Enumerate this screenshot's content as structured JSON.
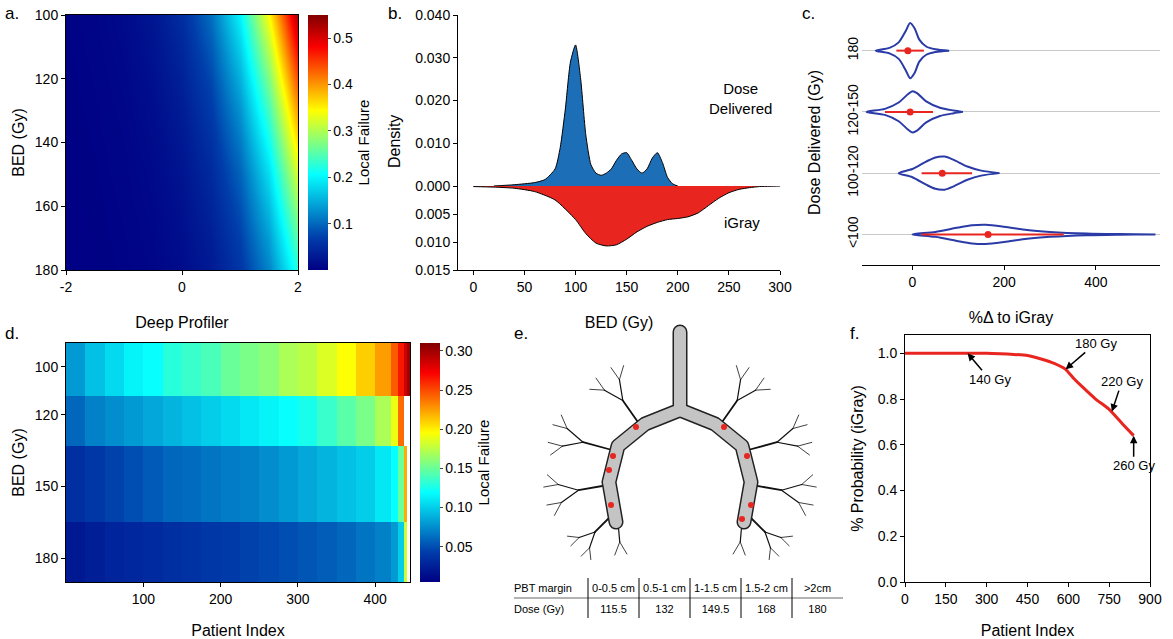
{
  "chart_data": [
    {
      "type": "heatmap",
      "title": "a.",
      "x_label": "Deep Profiler",
      "y_label": "BED (Gy)",
      "x": [
        -2,
        -1.5,
        -1,
        -0.5,
        0,
        0.5,
        1,
        1.5,
        2
      ],
      "y": [
        100,
        110,
        120,
        130,
        140,
        150,
        160,
        170,
        180
      ],
      "z": [
        [
          0.0028,
          0.0058,
          0.0123,
          0.0256,
          0.0527,
          0.105,
          0.199,
          0.345,
          0.527
        ],
        [
          0.0023,
          0.0049,
          0.0103,
          0.0217,
          0.0448,
          0.09,
          0.174,
          0.308,
          0.485
        ],
        [
          0.002,
          0.0042,
          0.0088,
          0.0183,
          0.0381,
          0.077,
          0.151,
          0.273,
          0.443
        ],
        [
          0.0017,
          0.0035,
          0.0074,
          0.0155,
          0.0323,
          0.066,
          0.13,
          0.241,
          0.401
        ],
        [
          0.0014,
          0.003,
          0.0062,
          0.0131,
          0.0274,
          0.056,
          0.112,
          0.211,
          0.361
        ],
        [
          0.0012,
          0.0025,
          0.0053,
          0.0111,
          0.0232,
          0.048,
          0.096,
          0.184,
          0.323
        ],
        [
          0.001,
          0.0021,
          0.0045,
          0.0095,
          0.0198,
          0.041,
          0.083,
          0.161,
          0.289
        ],
        [
          0.0009,
          0.0018,
          0.0038,
          0.008,
          0.0168,
          0.035,
          0.071,
          0.139,
          0.255
        ],
        [
          0.0007,
          0.0015,
          0.0032,
          0.0068,
          0.0142,
          0.03,
          0.061,
          0.12,
          0.224
        ]
      ],
      "xlim": [
        -2,
        2
      ],
      "xticks": [
        -2,
        0,
        2
      ],
      "ylim": [
        180,
        100
      ],
      "yticks": [
        100,
        120,
        140,
        160,
        180
      ],
      "color": "Jet",
      "colorbar": {
        "title": "Local Failure",
        "range": [
          0,
          0.55
        ],
        "ticks": [
          0.1,
          0.2,
          0.3,
          0.4,
          0.5
        ]
      }
    },
    {
      "type": "density",
      "title": "b.",
      "x_label": "BED (Gy)",
      "y_label": "Density",
      "xlim": [
        -15,
        300
      ],
      "xticks": [
        0,
        50,
        100,
        150,
        200,
        250,
        300
      ],
      "ylim": [
        0,
        0.04
      ],
      "yticks": [
        {
          "value": 0,
          "label": "0.000"
        },
        {
          "value": 0.01,
          "label": "0.010"
        },
        {
          "value": 0.02,
          "label": "0.020"
        },
        {
          "value": 0.03,
          "label": "0.030"
        },
        {
          "value": 0.04,
          "label": "0.040"
        }
      ],
      "y2lim": [
        0.015,
        0
      ],
      "y2ticks": [
        0.005,
        {
          "value": 0.01,
          "label": "0.010"
        },
        0.015
      ],
      "series": [
        {
          "name": "Dose Delivered",
          "color": "#1c6eb7",
          "x": [
            20,
            40,
            60,
            70,
            80,
            85,
            90,
            95,
            100,
            105,
            110,
            115,
            120,
            125,
            130,
            135,
            140,
            145,
            150,
            155,
            160,
            165,
            170,
            175,
            180,
            185,
            190,
            195,
            200
          ],
          "values": [
            0,
            0.0003,
            0.0008,
            0.0015,
            0.004,
            0.009,
            0.018,
            0.029,
            0.033,
            0.025,
            0.012,
            0.005,
            0.003,
            0.0025,
            0.003,
            0.004,
            0.006,
            0.0075,
            0.0078,
            0.006,
            0.004,
            0.003,
            0.004,
            0.0065,
            0.0078,
            0.0055,
            0.002,
            0.0005,
            0
          ]
        },
        {
          "name": "iGray",
          "color": "#e8251f",
          "axis": "y2",
          "x": [
            0,
            20,
            40,
            60,
            80,
            100,
            110,
            120,
            130,
            140,
            150,
            160,
            170,
            180,
            190,
            200,
            210,
            220,
            230,
            240,
            250,
            260,
            270,
            280,
            290,
            300
          ],
          "values": [
            0.0001,
            0.0002,
            0.0004,
            0.001,
            0.0025,
            0.006,
            0.0085,
            0.0102,
            0.0107,
            0.0105,
            0.0095,
            0.0082,
            0.0072,
            0.0065,
            0.006,
            0.0058,
            0.0055,
            0.0048,
            0.0035,
            0.0022,
            0.0012,
            0.0006,
            0.0003,
            0.0001,
            5e-05,
            0
          ]
        }
      ]
    },
    {
      "type": "violin",
      "title": "c.",
      "orientation": "horizontal",
      "x_label": "%Δ to iGray",
      "y_label": "Dose Delivered (Gy)",
      "categories": [
        "<100",
        "100-120",
        "120-150",
        "180"
      ],
      "xlim": [
        -110,
        540
      ],
      "xticks": [
        0,
        200,
        400
      ],
      "grid": true,
      "color": "#2a3aa6",
      "violins": [
        {
          "x": [
            0,
            50,
            100,
            130,
            160,
            200,
            250,
            300,
            380,
            450,
            530
          ],
          "density": [
            0,
            0.09,
            0.25,
            0.33,
            0.35,
            0.28,
            0.16,
            0.09,
            0.03,
            0.01,
            0
          ],
          "median": 165,
          "whiskers": [
            20,
            330
          ]
        },
        {
          "x": [
            -30,
            0,
            30,
            50,
            70,
            90,
            120,
            150,
            190
          ],
          "density": [
            0,
            0.15,
            0.42,
            0.57,
            0.6,
            0.48,
            0.24,
            0.09,
            0
          ],
          "median": 65,
          "whiskers": [
            20,
            130
          ]
        },
        {
          "x": [
            -100,
            -60,
            -30,
            -10,
            0,
            10,
            30,
            60,
            90,
            110
          ],
          "density": [
            0,
            0.11,
            0.34,
            0.64,
            0.75,
            0.68,
            0.38,
            0.15,
            0.05,
            0
          ],
          "median": -5,
          "whiskers": [
            -60,
            45
          ]
        },
        {
          "x": [
            -80,
            -50,
            -30,
            -15,
            -5,
            5,
            15,
            30,
            50,
            80
          ],
          "density": [
            0,
            0.1,
            0.3,
            0.7,
            1,
            0.8,
            0.4,
            0.15,
            0.05,
            0
          ],
          "median": -10,
          "whiskers": [
            -35,
            25
          ]
        }
      ]
    },
    {
      "type": "heatmap",
      "title": "d.",
      "x_label": "Patient Index",
      "y_label": "BED (Gy)",
      "x_edges": [
        0,
        25,
        50,
        75,
        100,
        125,
        150,
        175,
        200,
        225,
        250,
        275,
        300,
        325,
        350,
        375,
        400,
        420,
        430,
        437,
        441,
        445
      ],
      "y_edges": [
        90,
        112,
        133,
        165,
        190
      ],
      "z": [
        [
          0.08,
          0.095,
          0.105,
          0.115,
          0.12,
          0.13,
          0.135,
          0.14,
          0.15,
          0.155,
          0.16,
          0.17,
          0.175,
          0.185,
          0.195,
          0.21,
          0.225,
          0.245,
          0.265,
          0.285,
          0.3
        ],
        [
          0.06,
          0.07,
          0.075,
          0.08,
          0.085,
          0.09,
          0.095,
          0.1,
          0.105,
          0.11,
          0.115,
          0.12,
          0.125,
          0.135,
          0.145,
          0.155,
          0.17,
          0.19,
          0.24,
          null,
          null
        ],
        [
          0.035,
          0.04,
          0.045,
          0.05,
          0.055,
          0.06,
          0.062,
          0.065,
          0.068,
          0.07,
          0.075,
          0.08,
          0.085,
          0.09,
          0.095,
          0.1,
          0.11,
          0.12,
          0.15,
          0.22,
          null
        ],
        [
          0.02,
          0.025,
          0.028,
          0.03,
          0.032,
          0.035,
          0.037,
          0.04,
          0.042,
          0.045,
          0.048,
          0.05,
          0.053,
          0.056,
          0.06,
          0.065,
          0.07,
          0.08,
          0.1,
          0.18,
          null
        ]
      ],
      "xlim": [
        0,
        445
      ],
      "xticks": [
        100,
        200,
        300,
        400
      ],
      "ylim": [
        190,
        90
      ],
      "yticks": [
        100,
        120,
        150,
        180
      ],
      "color": "Jet",
      "colorbar": {
        "title": "Local Failure",
        "range": [
          0.005,
          0.31
        ],
        "ticks": [
          0.05,
          {
            "value": 0.1,
            "label": "0.10"
          },
          0.15,
          {
            "value": 0.2,
            "label": "0.20"
          },
          0.25,
          {
            "value": 0.3,
            "label": "0.30"
          }
        ]
      }
    },
    {
      "type": "line",
      "title": "f.",
      "x_label": "Patient Index",
      "y_label": "% Probability (iGray)",
      "x": [
        0,
        100,
        200,
        300,
        350,
        400,
        450,
        500,
        550,
        590,
        620,
        650,
        700,
        750,
        800,
        840
      ],
      "values": [
        1,
        1,
        1,
        1,
        0.998,
        0.995,
        0.99,
        0.975,
        0.955,
        0.93,
        0.89,
        0.855,
        0.8,
        0.755,
        0.69,
        0.64
      ],
      "color": "#e8251f",
      "xlim": [
        0,
        900
      ],
      "xticks": [
        0,
        150,
        300,
        450,
        600,
        750,
        900
      ],
      "ylim": [
        0,
        1.08
      ],
      "yticks": [
        {
          "value": 0,
          "label": "0.0"
        },
        0.2,
        0.4,
        0.6,
        0.8,
        {
          "value": 1,
          "label": "1.0"
        }
      ],
      "annotations": [
        {
          "text": "140 Gy",
          "x": 230,
          "y": 1.0
        },
        {
          "text": "180 Gy",
          "x": 590,
          "y": 0.93
        },
        {
          "text": "220 Gy",
          "x": 760,
          "y": 0.745
        },
        {
          "text": "260 Gy",
          "x": 840,
          "y": 0.64
        }
      ]
    }
  ],
  "diagram": {
    "title": "e.",
    "table": {
      "header": "PBT margin",
      "columns": [
        "0-0.5 cm",
        "0.5-1 cm",
        "1-1.5 cm",
        "1.5-2 cm",
        ">2cm"
      ],
      "row_label": "Dose (Gy)",
      "values": [
        115.5,
        132,
        149.5,
        168,
        180
      ]
    }
  }
}
